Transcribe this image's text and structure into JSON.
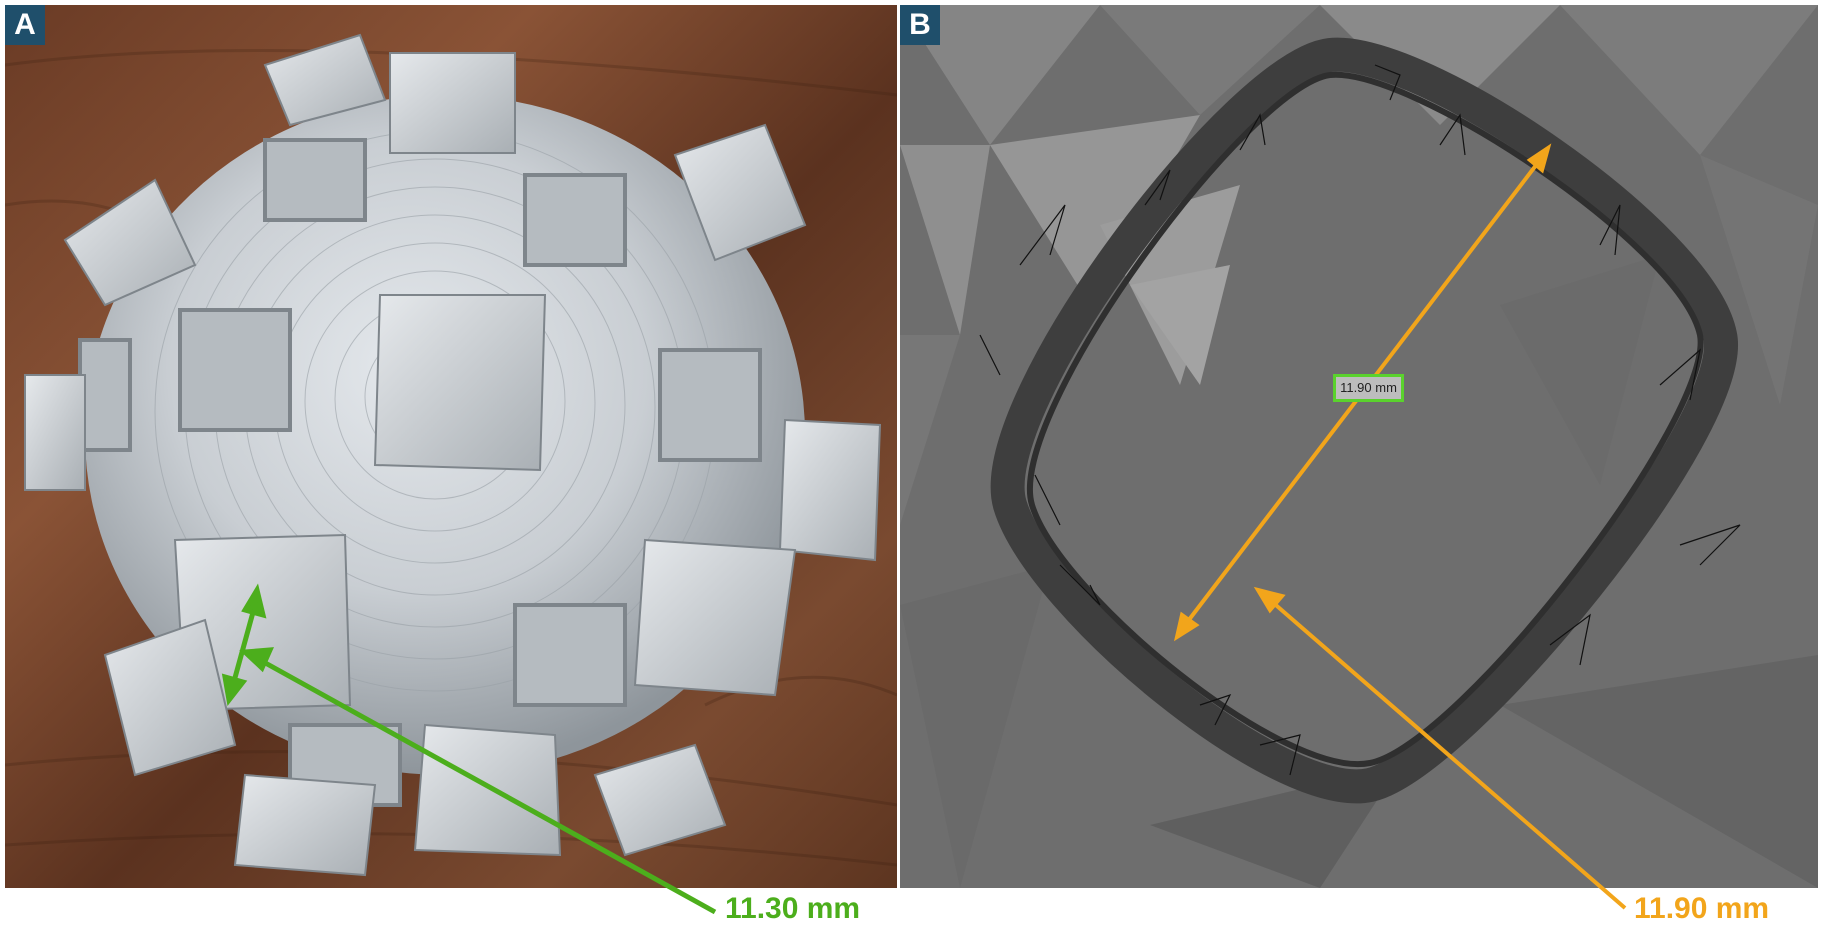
{
  "panels": {
    "a": {
      "label": "A"
    },
    "b": {
      "label": "B",
      "measure_tag": "11.90 mm"
    }
  },
  "measurements": {
    "a": {
      "text": "11.30 mm",
      "color": "#4cae1c"
    },
    "b": {
      "text": "11.90 mm",
      "color": "#f2a51b"
    }
  }
}
